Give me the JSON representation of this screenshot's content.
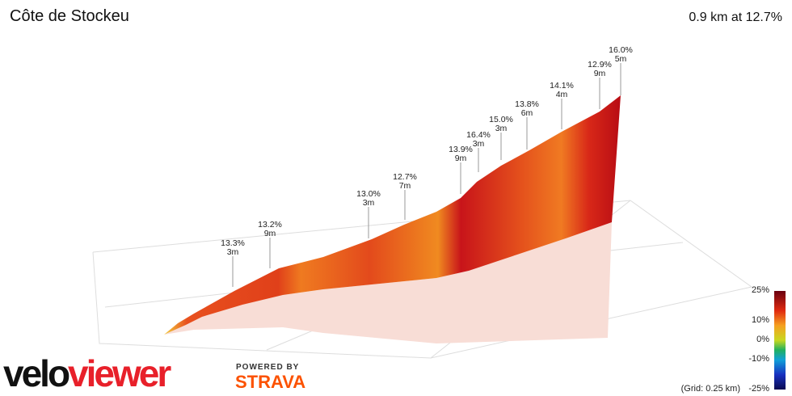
{
  "header": {
    "title": "Côte de Stockeu",
    "summary": "0.9 km at 12.7%"
  },
  "annotations": [
    {
      "grade": "13.3%",
      "length": "3m"
    },
    {
      "grade": "13.2%",
      "length": "9m"
    },
    {
      "grade": "13.0%",
      "length": "3m"
    },
    {
      "grade": "12.7%",
      "length": "7m"
    },
    {
      "grade": "13.9%",
      "length": "9m"
    },
    {
      "grade": "16.4%",
      "length": "3m"
    },
    {
      "grade": "15.0%",
      "length": "3m"
    },
    {
      "grade": "13.8%",
      "length": "6m"
    },
    {
      "grade": "14.1%",
      "length": "4m"
    },
    {
      "grade": "12.9%",
      "length": "9m"
    },
    {
      "grade": "16.0%",
      "length": "5m"
    }
  ],
  "colorbar": {
    "ticks": [
      "25%",
      "10%",
      "0%",
      "-10%",
      "-25%"
    ],
    "grid_note": "(Grid: 0.25 km)"
  },
  "logo": {
    "velo": "velo",
    "viewer": "viewer",
    "powered": "POWERED BY",
    "strava": "STRAVA"
  }
}
